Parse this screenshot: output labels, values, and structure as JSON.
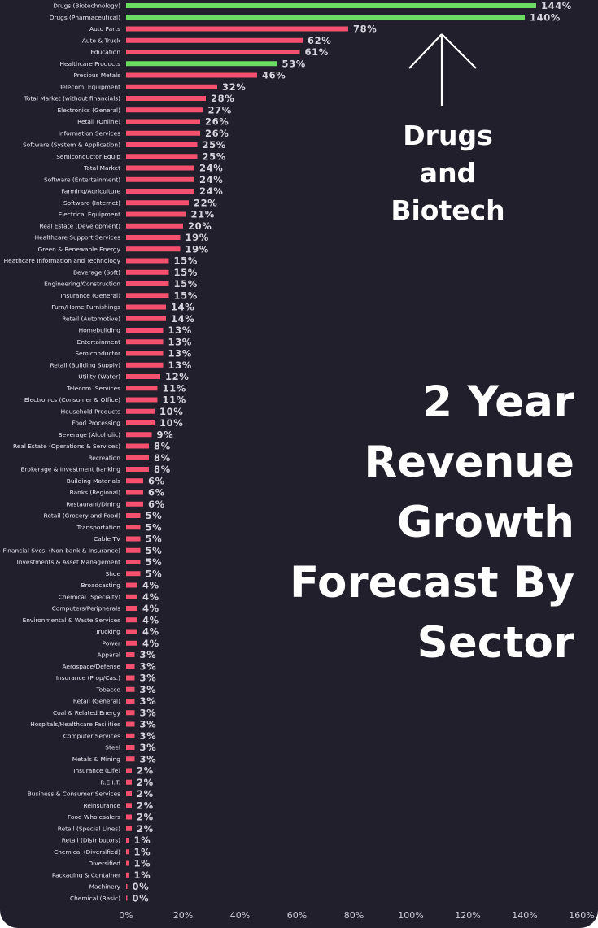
{
  "title": "2 Year Revenue Growth Forecast By Sector",
  "callout": "Drugs and Biotech",
  "colors": {
    "background": "#201f2b",
    "bar_default": "#f5506d",
    "bar_highlight": "#6bdb64",
    "text": "#ffffff"
  },
  "chart_data": {
    "type": "bar",
    "orientation": "horizontal",
    "title": "2 Year Revenue Growth Forecast By Sector",
    "xlabel": "",
    "ylabel": "",
    "xlim": [
      0,
      160
    ],
    "x_ticks": [
      "0%",
      "20%",
      "40%",
      "60%",
      "80%",
      "100%",
      "120%",
      "140%",
      "160%"
    ],
    "grid": false,
    "categories": [
      "Drugs (Biotechnology)",
      "Drugs (Pharmaceutical)",
      "Auto Parts",
      "Auto & Truck",
      "Education",
      "Healthcare Products",
      "Precious Metals",
      "Telecom. Equipment",
      "Total Market (without financials)",
      "Electronics (General)",
      "Retail (Online)",
      "Information Services",
      "Software (System & Application)",
      "Semiconductor Equip",
      "Total Market",
      "Software (Entertainment)",
      "Farming/Agriculture",
      "Software (Internet)",
      "Electrical Equipment",
      "Real Estate (Development)",
      "Healthcare Support Services",
      "Green & Renewable Energy",
      "Heathcare Information and Technology",
      "Beverage (Soft)",
      "Engineering/Construction",
      "Insurance (General)",
      "Furn/Home Furnishings",
      "Retail (Automotive)",
      "Homebuilding",
      "Entertainment",
      "Semiconductor",
      "Retail (Building Supply)",
      "Utility (Water)",
      "Telecom. Services",
      "Electronics (Consumer & Office)",
      "Household Products",
      "Food Processing",
      "Beverage (Alcoholic)",
      "Real Estate (Operations & Services)",
      "Recreation",
      "Brokerage & Investment Banking",
      "Building Materials",
      "Banks (Regional)",
      "Restaurant/Dining",
      "Retail (Grocery and Food)",
      "Transportation",
      "Cable TV",
      "Financial Svcs. (Non-bank & Insurance)",
      "Investments & Asset Management",
      "Shoe",
      "Broadcasting",
      "Chemical (Specialty)",
      "Computers/Peripherals",
      "Environmental & Waste Services",
      "Trucking",
      "Power",
      "Apparel",
      "Aerospace/Defense",
      "Insurance (Prop/Cas.)",
      "Tobacco",
      "Retail (General)",
      "Coal & Related Energy",
      "Hospitals/Healthcare Facilities",
      "Computer Services",
      "Steel",
      "Metals & Mining",
      "Insurance (Life)",
      "R.E.I.T.",
      "Business & Consumer Services",
      "Reinsurance",
      "Food Wholesalers",
      "Retail (Special Lines)",
      "Retail (Distributors)",
      "Chemical (Diversified)",
      "Diversified",
      "Packaging & Container",
      "Machinery",
      "Chemical (Basic)"
    ],
    "values": [
      144,
      140,
      78,
      62,
      61,
      53,
      46,
      32,
      28,
      27,
      26,
      26,
      25,
      25,
      24,
      24,
      24,
      22,
      21,
      20,
      19,
      19,
      15,
      15,
      15,
      15,
      14,
      14,
      13,
      13,
      13,
      13,
      12,
      11,
      11,
      10,
      10,
      9,
      8,
      8,
      8,
      6,
      6,
      6,
      5,
      5,
      5,
      5,
      5,
      5,
      4,
      4,
      4,
      4,
      4,
      4,
      3,
      3,
      3,
      3,
      3,
      3,
      3,
      3,
      3,
      3,
      2,
      2,
      2,
      2,
      2,
      2,
      1,
      1,
      1,
      1,
      0,
      0
    ],
    "labels": [
      "144%",
      "140%",
      "78%",
      "62%",
      "61%",
      "53%",
      "46%",
      "32%",
      "28%",
      "27%",
      "26%",
      "26%",
      "25%",
      "25%",
      "24%",
      "24%",
      "24%",
      "22%",
      "21%",
      "20%",
      "19%",
      "19%",
      "15%",
      "15%",
      "15%",
      "15%",
      "14%",
      "14%",
      "13%",
      "13%",
      "13%",
      "13%",
      "12%",
      "11%",
      "11%",
      "10%",
      "10%",
      "9%",
      "8%",
      "8%",
      "8%",
      "6%",
      "6%",
      "6%",
      "5%",
      "5%",
      "5%",
      "5%",
      "5%",
      "5%",
      "4%",
      "4%",
      "4%",
      "4%",
      "4%",
      "4%",
      "3%",
      "3%",
      "3%",
      "3%",
      "3%",
      "3%",
      "3%",
      "3%",
      "3%",
      "3%",
      "2%",
      "2%",
      "2%",
      "2%",
      "2%",
      "2%",
      "1%",
      "1%",
      "1%",
      "1%",
      "0%",
      "0%"
    ],
    "highlighted": [
      "Drugs (Biotechnology)",
      "Drugs (Pharmaceutical)",
      "Healthcare Products"
    ]
  }
}
